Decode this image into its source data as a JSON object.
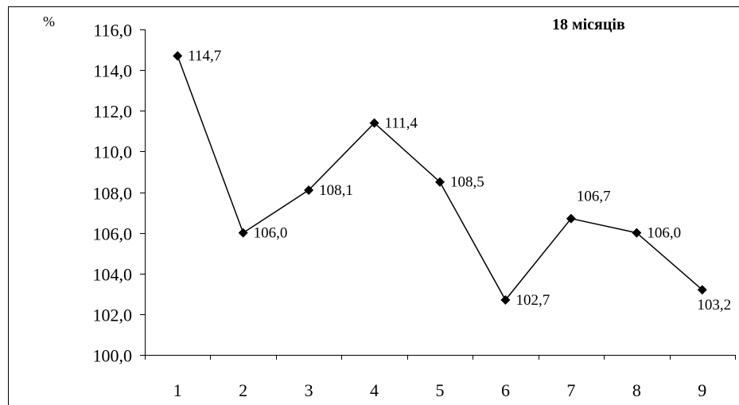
{
  "chart_data": {
    "type": "line",
    "title": "18 місяців",
    "ylabel": "%",
    "xlabel": "",
    "categories": [
      "1",
      "2",
      "3",
      "4",
      "5",
      "6",
      "7",
      "8",
      "9"
    ],
    "series": [
      {
        "values": [
          114.7,
          106.0,
          108.1,
          111.4,
          108.5,
          102.7,
          106.7,
          106.0,
          103.2
        ]
      }
    ],
    "data_labels": [
      "114,7",
      "106,0",
      "108,1",
      "111,4",
      "108,5",
      "102,7",
      "106,7",
      "106,0",
      "103,2"
    ],
    "ylim": [
      100,
      116
    ],
    "y_ticks": [
      100,
      102,
      104,
      106,
      108,
      110,
      112,
      114,
      116
    ],
    "y_tick_labels": [
      "100,0",
      "102,0",
      "104,0",
      "106,0",
      "108,0",
      "110,0",
      "112,0",
      "114,0",
      "116,0"
    ],
    "marker": "diamond",
    "grid": false,
    "legend": "none",
    "line_color": "#000000"
  }
}
